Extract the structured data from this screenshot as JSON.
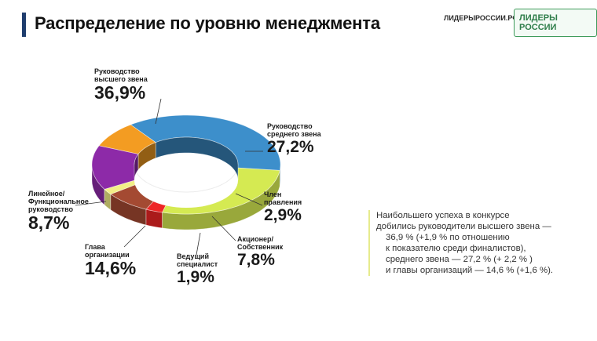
{
  "header": {
    "title": "Распределение по уровню менеджмента",
    "logo_url": "ЛИДЕРЫРОССИИ.РФ",
    "logo_text": "ЛИДЕРЫ РОССИИ"
  },
  "chart_data": {
    "type": "pie",
    "style": "3d-donut",
    "title": "Распределение по уровню менеджмента",
    "categories": [
      "Руководство высшего звена",
      "Руководство среднего звена",
      "Член правления",
      "Акционер/ Собственник",
      "Ведущий специалист",
      "Глава организации",
      "Линейное/ Функциональное руководство"
    ],
    "values": [
      36.9,
      27.2,
      2.9,
      7.8,
      1.9,
      14.6,
      8.7
    ],
    "value_labels": [
      "36,9%",
      "27,2%",
      "2,9%",
      "7,8%",
      "1,9%",
      "14,6%",
      "8,7%"
    ],
    "display_labels": [
      "Руководство\nвысшего звена",
      "Руководство\nсреднего звена",
      "Член\nправления",
      "Акционер/\nСобственник",
      "Ведущий\nспециалист",
      "Глава\nорганизации",
      "Линейное/\nФункциональное\nруководство"
    ],
    "colors": [
      "#3d8fcb",
      "#d5ea52",
      "#ee2626",
      "#a44a32",
      "#f2ef87",
      "#8d2aa8",
      "#f39c22"
    ],
    "legend": "none"
  },
  "note": {
    "lines": [
      "Наибольшего успеха в конкурсе",
      "добились руководители высшего звена —",
      "36,9 % (+1,9 % по отношению",
      "к  показателю среди финалистов),",
      "среднего звена — 27,2 % (+ 2,2 % )",
      "и главы организаций — 14,6 % (+1,6 %)."
    ],
    "accent_color": "#e6eb8c"
  }
}
